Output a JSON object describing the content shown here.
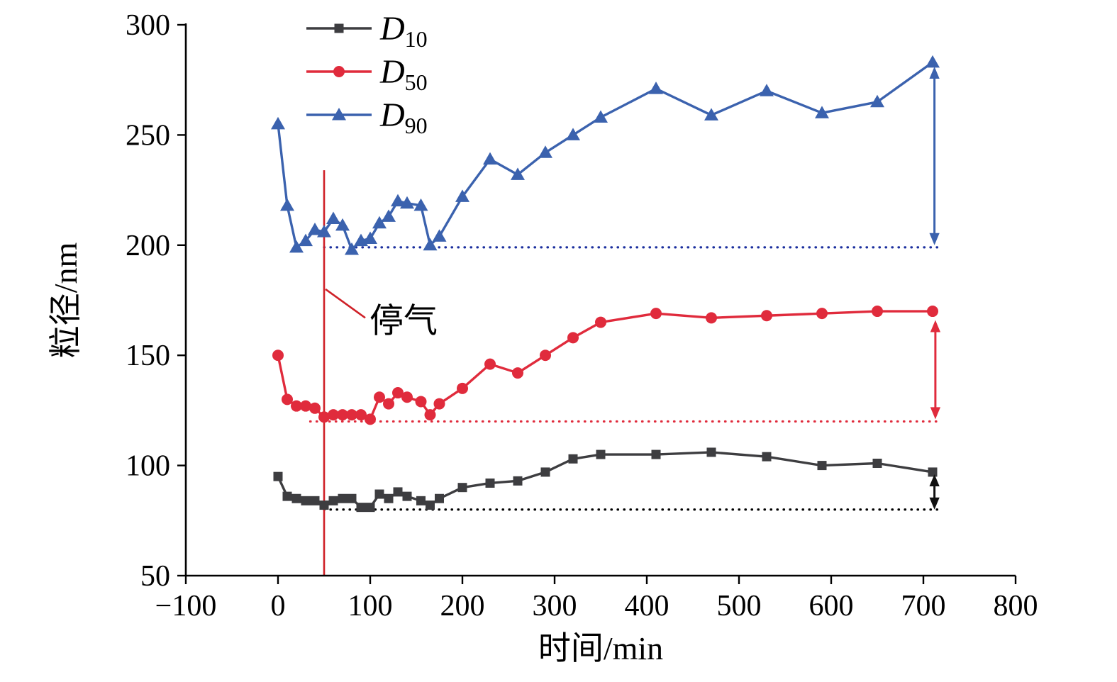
{
  "figure": {
    "xlabel": "时间/min",
    "ylabel": "粒径/nm",
    "event_label": "停气",
    "legend_items": [
      "D10",
      "D50",
      "D90"
    ]
  },
  "chart_data": {
    "type": "line",
    "title": "",
    "xlabel": "时间/min",
    "ylabel": "粒径/nm",
    "xlim": [
      -100,
      800
    ],
    "ylim": [
      50,
      300
    ],
    "xticks": [
      -100,
      0,
      100,
      200,
      300,
      400,
      500,
      600,
      700,
      800
    ],
    "yticks": [
      50,
      100,
      150,
      200,
      250,
      300
    ],
    "grid": false,
    "legend_position": "top-left-inside",
    "x": [
      0,
      10,
      20,
      30,
      40,
      50,
      60,
      70,
      80,
      90,
      100,
      110,
      120,
      130,
      140,
      155,
      165,
      175,
      200,
      230,
      260,
      290,
      320,
      350,
      410,
      470,
      530,
      590,
      650,
      710
    ],
    "series": [
      {
        "name": "D10",
        "label_main": "D",
        "label_sub": "10",
        "color": "#3d3d40",
        "marker": "square",
        "values": [
          95,
          86,
          85,
          84,
          84,
          82,
          84,
          85,
          85,
          81,
          81,
          87,
          85,
          88,
          86,
          84,
          82,
          85,
          90,
          92,
          93,
          97,
          103,
          105,
          105,
          106,
          104,
          100,
          101,
          97
        ]
      },
      {
        "name": "D50",
        "label_main": "D",
        "label_sub": "50",
        "color": "#e02b3c",
        "marker": "circle",
        "values": [
          150,
          130,
          127,
          127,
          126,
          122,
          123,
          123,
          123,
          123,
          121,
          131,
          128,
          133,
          131,
          129,
          123,
          128,
          135,
          146,
          142,
          150,
          158,
          165,
          169,
          167,
          168,
          169,
          170,
          170
        ]
      },
      {
        "name": "D90",
        "label_main": "D",
        "label_sub": "90",
        "color": "#3b62ae",
        "marker": "triangle",
        "values": [
          255,
          218,
          199,
          202,
          207,
          206,
          212,
          209,
          198,
          202,
          203,
          210,
          213,
          220,
          219,
          218,
          200,
          204,
          222,
          239,
          232,
          242,
          250,
          258,
          271,
          259,
          270,
          260,
          265,
          283
        ]
      }
    ],
    "reference_lines": [
      {
        "y": 80,
        "color": "#000000",
        "x_start": 50,
        "x_end": 718
      },
      {
        "y": 120,
        "color": "#e02b3c",
        "x_start": 35,
        "x_end": 718
      },
      {
        "y": 199,
        "color": "#1b2f9e",
        "x_start": 50,
        "x_end": 718
      }
    ],
    "event_line": {
      "x": 50,
      "y_top": 234,
      "y_bottom": 50,
      "color": "#cf2128",
      "label": "停气"
    },
    "arrows": [
      {
        "x": 712,
        "y1": 80,
        "y2": 96,
        "color": "#111111"
      },
      {
        "x": 713,
        "y1": 121,
        "y2": 166,
        "color": "#e02b3c"
      },
      {
        "x": 712,
        "y1": 200,
        "y2": 281,
        "color": "#3b62ae"
      }
    ]
  }
}
